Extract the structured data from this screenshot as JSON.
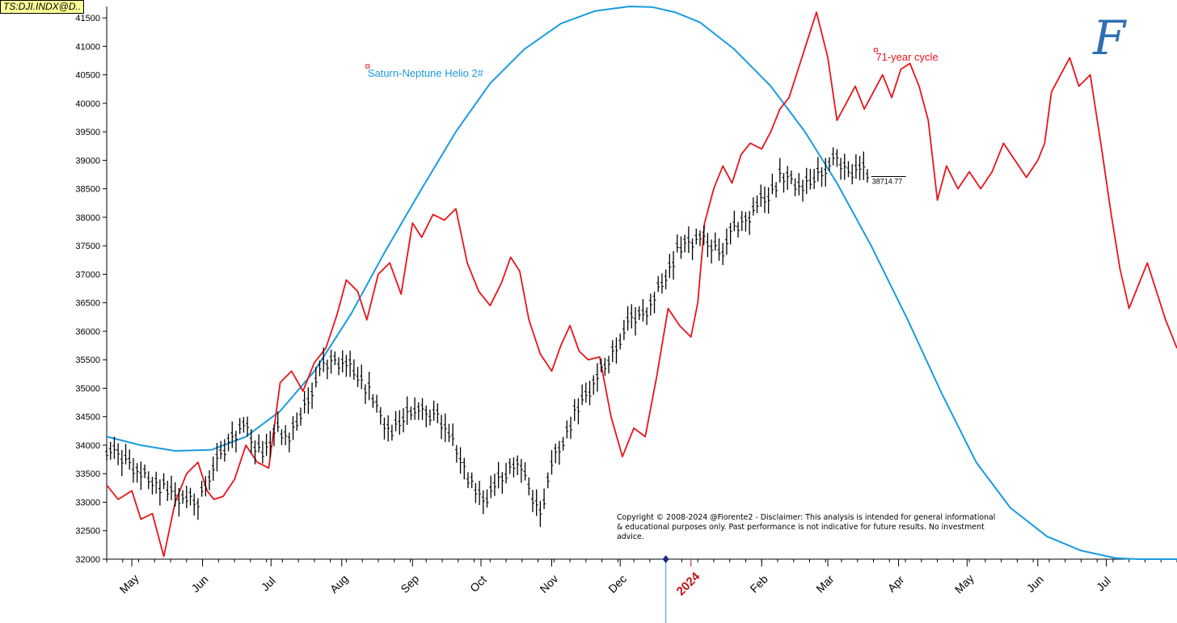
{
  "ticker_label": "TS:DJI.INDX@D..",
  "logo_text": "F",
  "copyright": "Copyright © 2008-2024 @Fiorente2 -  Disclaimer: This analysis is intended for general informational & educational purposes only. Past performance is not indicative for future results. No investment advice.",
  "colors": {
    "price": "#000000",
    "cycle": "#e8141b",
    "helio": "#1a9be0",
    "axis": "#000000",
    "year": "#c0141b"
  },
  "chart_data": {
    "type": "line",
    "ylim": [
      32000,
      41700
    ],
    "yticks": [
      32000,
      32500,
      33000,
      33500,
      34000,
      34500,
      35000,
      35500,
      36000,
      36500,
      37000,
      37500,
      38000,
      38500,
      39000,
      39500,
      40000,
      40500,
      41000,
      41500
    ],
    "xlim": [
      "2023-04-20",
      "2024-08-01"
    ],
    "xticks": [
      {
        "label": "May",
        "date": "2023-05-01",
        "year": false
      },
      {
        "label": "Jun",
        "date": "2023-06-01",
        "year": false
      },
      {
        "label": "Jul",
        "date": "2023-07-01",
        "year": false
      },
      {
        "label": "Aug",
        "date": "2023-08-01",
        "year": false
      },
      {
        "label": "Sep",
        "date": "2023-09-01",
        "year": false
      },
      {
        "label": "Oct",
        "date": "2023-10-01",
        "year": false
      },
      {
        "label": "Nov",
        "date": "2023-11-01",
        "year": false
      },
      {
        "label": "Dec",
        "date": "2023-12-01",
        "year": false
      },
      {
        "label": "2024",
        "date": "2024-01-01",
        "year": true
      },
      {
        "label": "Feb",
        "date": "2024-02-01",
        "year": false
      },
      {
        "label": "Mar",
        "date": "2024-03-01",
        "year": false
      },
      {
        "label": "Apr",
        "date": "2024-04-01",
        "year": false
      },
      {
        "label": "May",
        "date": "2024-05-01",
        "year": false
      },
      {
        "label": "Jun",
        "date": "2024-06-01",
        "year": false
      },
      {
        "label": "Jul",
        "date": "2024-07-01",
        "year": false
      }
    ],
    "last_price_label": "38714.77",
    "last_price": 38714.77,
    "series": [
      {
        "name": "Saturn-Neptune Helio 2#",
        "style": "line",
        "x": [
          "2023-04-20",
          "2023-05-05",
          "2023-05-20",
          "2023-06-05",
          "2023-06-20",
          "2023-07-05",
          "2023-07-20",
          "2023-08-05",
          "2023-08-20",
          "2023-09-05",
          "2023-09-20",
          "2023-10-05",
          "2023-10-20",
          "2023-11-05",
          "2023-11-20",
          "2023-12-05",
          "2023-12-15",
          "2023-12-25",
          "2024-01-05",
          "2024-01-20",
          "2024-02-05",
          "2024-02-20",
          "2024-03-05",
          "2024-03-20",
          "2024-04-05",
          "2024-04-20",
          "2024-05-05",
          "2024-05-20",
          "2024-06-05",
          "2024-06-20",
          "2024-07-05",
          "2024-07-15",
          "2024-08-01"
        ],
        "values": [
          34150,
          34000,
          33900,
          33920,
          34150,
          34600,
          35300,
          36300,
          37400,
          38500,
          39500,
          40350,
          40950,
          41400,
          41620,
          41700,
          41690,
          41600,
          41420,
          40950,
          40300,
          39500,
          38600,
          37500,
          36200,
          34900,
          33700,
          32900,
          32400,
          32150,
          32020,
          32000,
          32000
        ]
      },
      {
        "name": "71-year cycle",
        "style": "line",
        "x": [
          "2023-04-20",
          "2023-04-25",
          "2023-05-01",
          "2023-05-05",
          "2023-05-10",
          "2023-05-15",
          "2023-05-20",
          "2023-05-25",
          "2023-05-30",
          "2023-06-03",
          "2023-06-06",
          "2023-06-10",
          "2023-06-15",
          "2023-06-20",
          "2023-06-25",
          "2023-06-30",
          "2023-07-05",
          "2023-07-10",
          "2023-07-15",
          "2023-07-20",
          "2023-07-25",
          "2023-07-30",
          "2023-08-03",
          "2023-08-08",
          "2023-08-12",
          "2023-08-17",
          "2023-08-22",
          "2023-08-27",
          "2023-09-01",
          "2023-09-05",
          "2023-09-10",
          "2023-09-15",
          "2023-09-20",
          "2023-09-25",
          "2023-09-30",
          "2023-10-05",
          "2023-10-10",
          "2023-10-14",
          "2023-10-18",
          "2023-10-22",
          "2023-10-27",
          "2023-11-01",
          "2023-11-05",
          "2023-11-09",
          "2023-11-13",
          "2023-11-17",
          "2023-11-22",
          "2023-11-27",
          "2023-12-02",
          "2023-12-07",
          "2023-12-12",
          "2023-12-17",
          "2023-12-22",
          "2023-12-27",
          "2024-01-01",
          "2024-01-04",
          "2024-01-07",
          "2024-01-11",
          "2024-01-15",
          "2024-01-19",
          "2024-01-23",
          "2024-01-27",
          "2024-02-01",
          "2024-02-05",
          "2024-02-09",
          "2024-02-13",
          "2024-02-17",
          "2024-02-21",
          "2024-02-25",
          "2024-03-01",
          "2024-03-05",
          "2024-03-09",
          "2024-03-13",
          "2024-03-17",
          "2024-03-21",
          "2024-03-25",
          "2024-03-29",
          "2024-04-02",
          "2024-04-06",
          "2024-04-10",
          "2024-04-14",
          "2024-04-18",
          "2024-04-22",
          "2024-04-27",
          "2024-05-02",
          "2024-05-07",
          "2024-05-12",
          "2024-05-17",
          "2024-05-22",
          "2024-05-27",
          "2024-06-01",
          "2024-06-04",
          "2024-06-07",
          "2024-06-11",
          "2024-06-15",
          "2024-06-19",
          "2024-06-24",
          "2024-06-29",
          "2024-07-03",
          "2024-07-07",
          "2024-07-11",
          "2024-07-15",
          "2024-07-19",
          "2024-07-23",
          "2024-07-27",
          "2024-08-01"
        ],
        "values": [
          33300,
          33050,
          33200,
          32700,
          32800,
          32050,
          33000,
          33500,
          33700,
          33200,
          33050,
          33100,
          33400,
          34000,
          33700,
          33600,
          35100,
          35300,
          34950,
          35450,
          35700,
          36300,
          36900,
          36700,
          36200,
          37000,
          37200,
          36650,
          37900,
          37650,
          38050,
          37950,
          38150,
          37200,
          36700,
          36450,
          36850,
          37300,
          37050,
          36200,
          35600,
          35300,
          35750,
          36100,
          35650,
          35500,
          35550,
          34500,
          33800,
          34300,
          34150,
          35200,
          36400,
          36100,
          35900,
          36500,
          37900,
          38500,
          38900,
          38600,
          39100,
          39300,
          39200,
          39500,
          39900,
          40100,
          40600,
          41100,
          41600,
          40800,
          39700,
          40000,
          40300,
          39900,
          40200,
          40500,
          40100,
          40600,
          40700,
          40300,
          39700,
          38300,
          38900,
          38500,
          38800,
          38500,
          38800,
          39300,
          39000,
          38700,
          39000,
          39300,
          40200,
          40500,
          40800,
          40300,
          40500,
          39200,
          38100,
          37100,
          36400,
          36800,
          37200,
          36700,
          36200,
          35700
        ]
      },
      {
        "name": "DJI.INDX daily",
        "style": "price",
        "x": [
          "2023-04-20",
          "2023-04-25",
          "2023-04-30",
          "2023-05-05",
          "2023-05-10",
          "2023-05-15",
          "2023-05-20",
          "2023-05-25",
          "2023-05-30",
          "2023-06-04",
          "2023-06-09",
          "2023-06-14",
          "2023-06-19",
          "2023-06-24",
          "2023-06-29",
          "2023-07-04",
          "2023-07-09",
          "2023-07-14",
          "2023-07-19",
          "2023-07-24",
          "2023-07-29",
          "2023-08-03",
          "2023-08-08",
          "2023-08-13",
          "2023-08-18",
          "2023-08-23",
          "2023-08-28",
          "2023-09-02",
          "2023-09-07",
          "2023-09-12",
          "2023-09-17",
          "2023-09-22",
          "2023-09-27",
          "2023-10-02",
          "2023-10-07",
          "2023-10-12",
          "2023-10-17",
          "2023-10-22",
          "2023-10-27",
          "2023-11-01",
          "2023-11-06",
          "2023-11-11",
          "2023-11-16",
          "2023-11-21",
          "2023-11-26",
          "2023-12-01",
          "2023-12-06",
          "2023-12-11",
          "2023-12-16",
          "2023-12-21",
          "2023-12-26",
          "2023-12-31",
          "2024-01-05",
          "2024-01-10",
          "2024-01-15",
          "2024-01-20",
          "2024-01-25",
          "2024-01-30",
          "2024-02-04",
          "2024-02-09",
          "2024-02-14",
          "2024-02-19",
          "2024-02-24",
          "2024-02-29",
          "2024-03-05",
          "2024-03-10",
          "2024-03-15",
          "2024-03-20"
        ],
        "values": [
          33950,
          33800,
          33700,
          33500,
          33400,
          33250,
          33100,
          33050,
          33000,
          33500,
          33800,
          34150,
          34400,
          34000,
          33900,
          34300,
          34100,
          34550,
          35000,
          35400,
          35500,
          35450,
          35250,
          34950,
          34500,
          34200,
          34500,
          34700,
          34500,
          34550,
          34200,
          33800,
          33300,
          33000,
          33300,
          33500,
          33800,
          33200,
          32800,
          33700,
          34100,
          34550,
          34850,
          35200,
          35500,
          35900,
          36200,
          36300,
          36600,
          37000,
          37400,
          37550,
          37650,
          37500,
          37450,
          37800,
          37950,
          38250,
          38400,
          38700,
          38650,
          38500,
          38700,
          38900,
          39000,
          38800,
          38900,
          38714.77
        ]
      }
    ]
  }
}
